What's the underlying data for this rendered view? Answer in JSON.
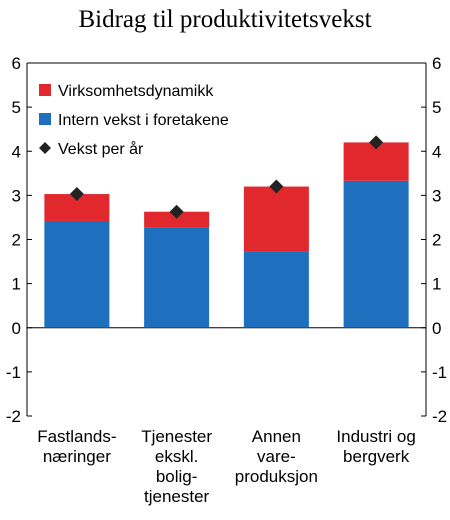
{
  "chart_data": {
    "type": "bar",
    "stacked": true,
    "title": "Bidrag til produktivitetsvekst",
    "categories": [
      [
        "Fastlands-",
        "næringer"
      ],
      [
        "Tjenester",
        "ekskl.",
        "bolig-",
        "tjenester"
      ],
      [
        "Annen",
        "vare-",
        "produksjon"
      ],
      [
        "Industri og",
        "bergverk"
      ]
    ],
    "series": [
      {
        "name": "Intern vekst i foretakene",
        "color": "#1f6fbf",
        "values": [
          2.42,
          2.28,
          1.73,
          3.33
        ]
      },
      {
        "name": "Virksomhetsdynamikk",
        "color": "#e0282d",
        "values": [
          0.61,
          0.35,
          1.47,
          0.87
        ]
      }
    ],
    "points": {
      "name": "Vekst per år",
      "color": "#222222",
      "values": [
        3.03,
        2.63,
        3.2,
        4.2
      ]
    },
    "ylim": [
      -2,
      6
    ],
    "yticks": [
      -2,
      -1,
      0,
      1,
      2,
      3,
      4,
      5,
      6
    ],
    "y_axis_both_sides": true,
    "grid": false,
    "legend_position": "top-left",
    "legend_order": [
      "Virksomhetsdynamikk",
      "Intern vekst i foretakene",
      "Vekst per år"
    ]
  }
}
